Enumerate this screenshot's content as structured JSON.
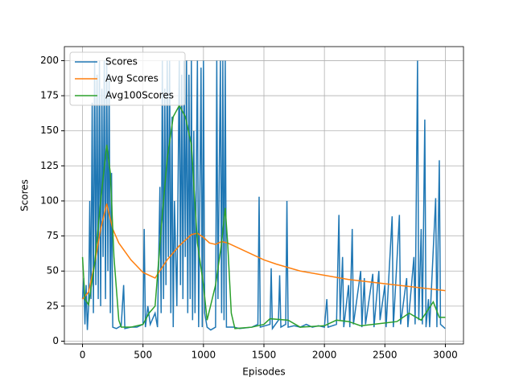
{
  "chart_data": {
    "type": "line",
    "xlabel": "Episodes",
    "ylabel": "Scores",
    "xlim": [
      -150,
      3150
    ],
    "ylim": [
      -2,
      210
    ],
    "xticks": [
      0,
      500,
      1000,
      1500,
      2000,
      2500,
      3000
    ],
    "yticks": [
      0,
      25,
      50,
      75,
      100,
      125,
      150,
      175,
      200
    ],
    "grid": true,
    "legend": "upper-left",
    "series": [
      {
        "name": "Scores",
        "color": "#1f77b4",
        "x": [
          0,
          10,
          20,
          30,
          40,
          50,
          60,
          70,
          80,
          90,
          100,
          110,
          120,
          130,
          140,
          150,
          160,
          170,
          180,
          190,
          200,
          210,
          220,
          230,
          240,
          250,
          280,
          320,
          340,
          350,
          400,
          450,
          500,
          510,
          520,
          540,
          560,
          600,
          620,
          640,
          650,
          660,
          670,
          680,
          690,
          700,
          710,
          720,
          730,
          740,
          750,
          760,
          780,
          800,
          810,
          820,
          830,
          840,
          850,
          860,
          870,
          880,
          890,
          900,
          910,
          920,
          930,
          950,
          960,
          980,
          990,
          1000,
          1010,
          1030,
          1060,
          1100,
          1110,
          1120,
          1140,
          1150,
          1160,
          1170,
          1180,
          1190,
          1250,
          1300,
          1400,
          1450,
          1460,
          1470,
          1550,
          1560,
          1570,
          1620,
          1630,
          1640,
          1680,
          1690,
          1700,
          1750,
          1800,
          1850,
          1900,
          1950,
          2000,
          2020,
          2030,
          2100,
          2120,
          2130,
          2150,
          2160,
          2200,
          2210,
          2230,
          2240,
          2300,
          2310,
          2330,
          2340,
          2400,
          2410,
          2450,
          2460,
          2500,
          2510,
          2560,
          2570,
          2620,
          2630,
          2680,
          2690,
          2740,
          2750,
          2770,
          2780,
          2800,
          2810,
          2830,
          2840,
          2860,
          2870,
          2920,
          2930,
          2950,
          2960,
          2999
        ],
        "values": [
          30,
          45,
          12,
          40,
          8,
          25,
          100,
          30,
          170,
          20,
          200,
          40,
          190,
          30,
          200,
          25,
          180,
          60,
          200,
          30,
          200,
          50,
          190,
          20,
          120,
          10,
          9,
          11,
          40,
          9,
          10,
          10,
          12,
          80,
          10,
          25,
          12,
          20,
          10,
          110,
          20,
          200,
          30,
          180,
          40,
          200,
          60,
          200,
          20,
          160,
          10,
          100,
          25,
          200,
          40,
          190,
          30,
          200,
          60,
          200,
          20,
          190,
          30,
          200,
          15,
          150,
          20,
          200,
          10,
          195,
          10,
          200,
          20,
          10,
          8,
          10,
          200,
          30,
          200,
          20,
          200,
          15,
          200,
          10,
          10,
          9,
          10,
          12,
          103,
          10,
          12,
          52,
          9,
          15,
          47,
          10,
          12,
          100,
          10,
          11,
          10,
          12,
          10,
          11,
          10,
          30,
          10,
          12,
          90,
          15,
          60,
          10,
          40,
          10,
          80,
          12,
          50,
          10,
          45,
          12,
          48,
          10,
          50,
          15,
          40,
          10,
          89,
          10,
          90,
          12,
          45,
          10,
          60,
          12,
          200,
          15,
          80,
          12,
          158,
          10,
          30,
          10,
          102,
          10,
          129,
          12,
          9
        ]
      },
      {
        "name": "Avg Scores",
        "color": "#ff7f0e",
        "x": [
          0,
          50,
          100,
          150,
          200,
          250,
          300,
          400,
          500,
          600,
          700,
          800,
          900,
          950,
          1000,
          1050,
          1100,
          1150,
          1200,
          1300,
          1400,
          1500,
          1600,
          1800,
          2000,
          2200,
          2400,
          2600,
          2800,
          3000
        ],
        "values": [
          30,
          35,
          55,
          80,
          98,
          80,
          70,
          58,
          49,
          45,
          58,
          68,
          76,
          77,
          74,
          70,
          69,
          71,
          70,
          66,
          62,
          58,
          55,
          50,
          47,
          44,
          42,
          40,
          38,
          36
        ]
      },
      {
        "name": "Avg100Scores",
        "color": "#2ca02c",
        "x": [
          0,
          20,
          50,
          100,
          150,
          200,
          230,
          260,
          300,
          320,
          400,
          500,
          550,
          600,
          650,
          700,
          750,
          800,
          850,
          900,
          950,
          1000,
          1030,
          1100,
          1150,
          1180,
          1200,
          1230,
          1260,
          1400,
          1500,
          1550,
          1700,
          1800,
          2000,
          2100,
          2200,
          2300,
          2500,
          2600,
          2700,
          2800,
          2900,
          2950,
          3000
        ],
        "values": [
          60,
          30,
          26,
          55,
          100,
          140,
          120,
          60,
          15,
          10,
          10,
          12,
          20,
          25,
          80,
          130,
          160,
          168,
          160,
          140,
          70,
          40,
          15,
          40,
          70,
          95,
          70,
          20,
          9,
          10,
          12,
          16,
          15,
          10,
          11,
          15,
          14,
          11,
          13,
          14,
          20,
          15,
          28,
          17,
          17
        ]
      }
    ]
  }
}
